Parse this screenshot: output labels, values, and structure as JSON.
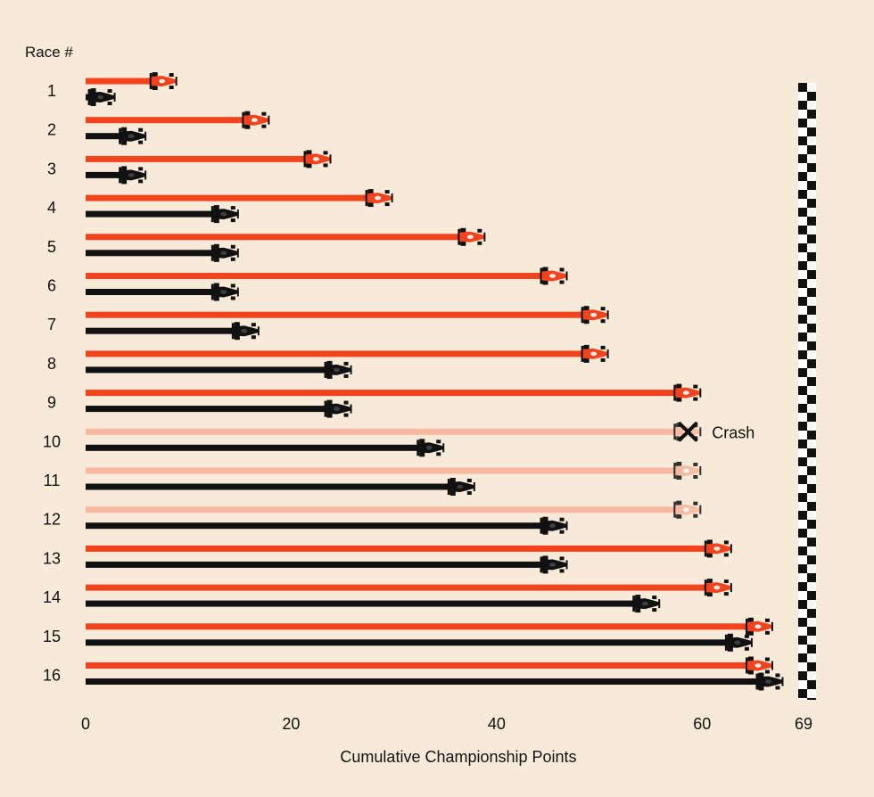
{
  "chart_data": {
    "type": "bar",
    "y_axis_title": "Race #",
    "xlabel": "Cumulative Championship Points",
    "x_ticks": [
      0,
      20,
      40,
      60,
      69
    ],
    "xlim": [
      0,
      69
    ],
    "finish_line_at": 69,
    "categories": [
      "1",
      "2",
      "3",
      "4",
      "5",
      "6",
      "7",
      "8",
      "9",
      "10",
      "11",
      "12",
      "13",
      "14",
      "15",
      "16"
    ],
    "series": [
      {
        "color": "#f2431f",
        "faded_color": "#f4b9a0",
        "values": [
          9,
          18,
          24,
          30,
          39,
          47,
          51,
          51,
          60,
          60,
          60,
          60,
          63,
          63,
          67,
          67
        ],
        "faded": [
          false,
          false,
          false,
          false,
          false,
          false,
          false,
          false,
          false,
          true,
          true,
          true,
          false,
          false,
          false,
          false
        ]
      },
      {
        "color": "#111111",
        "values": [
          3,
          6,
          6,
          15,
          15,
          15,
          17,
          26,
          26,
          35,
          38,
          47,
          47,
          56,
          65,
          68
        ]
      }
    ],
    "annotations": [
      {
        "race": "10",
        "series": 0,
        "icon": "cross-icon",
        "text": "Crash"
      }
    ]
  }
}
